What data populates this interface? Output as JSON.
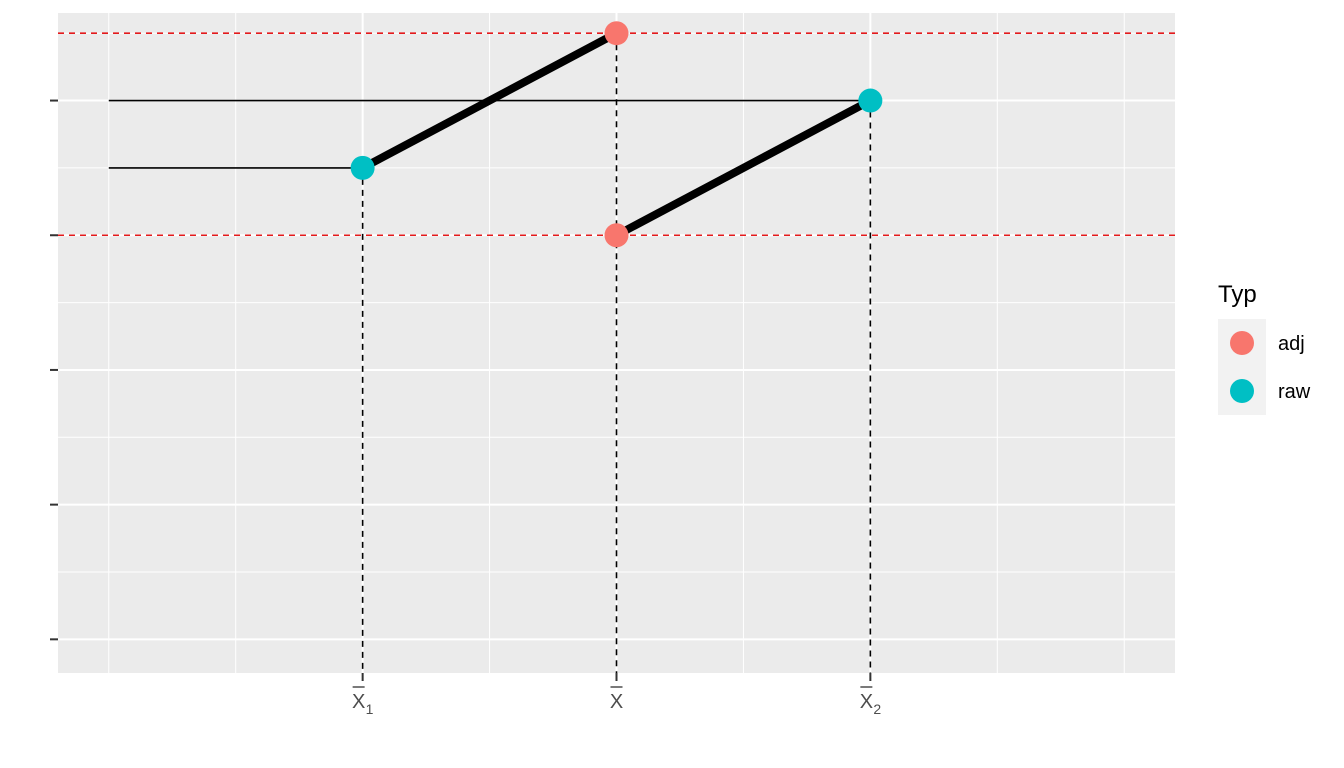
{
  "chart_data": {
    "type": "scatter",
    "x_ticks": [
      {
        "value": 3,
        "label": "X",
        "sub": "1"
      },
      {
        "value": 5,
        "label": "X",
        "sub": ""
      },
      {
        "value": 7,
        "label": "X",
        "sub": "2"
      }
    ],
    "xlim": [
      0.6,
      9.4
    ],
    "ylim": [
      0.25,
      5.15
    ],
    "y_ticks": [
      0.5,
      1.5,
      2.5,
      3.5,
      4.5
    ],
    "x_minor": [
      1,
      2,
      3,
      4,
      5,
      6,
      7,
      8,
      9
    ],
    "y_grid": [
      0.5,
      1.0,
      1.5,
      2.0,
      2.5,
      3.0,
      3.5,
      4.0,
      4.5,
      5.0
    ],
    "points": [
      {
        "x": 3,
        "y": 4.0,
        "type": "raw"
      },
      {
        "x": 7,
        "y": 4.5,
        "type": "raw"
      },
      {
        "x": 5,
        "y": 5.0,
        "type": "adj"
      },
      {
        "x": 5,
        "y": 3.5,
        "type": "adj"
      }
    ],
    "thick_segments": [
      {
        "x1": 3,
        "y1": 4.0,
        "x2": 5,
        "y2": 5.0
      },
      {
        "x1": 5,
        "y1": 3.5,
        "x2": 7,
        "y2": 4.5
      }
    ],
    "thin_segments": [
      {
        "x1": 1,
        "y1": 4.5,
        "x2": 7,
        "y2": 4.5
      },
      {
        "x1": 1,
        "y1": 4.0,
        "x2": 3,
        "y2": 4.0
      }
    ],
    "hlines_dashed": [
      5.0,
      3.5
    ],
    "vlines_dashed": [
      {
        "x": 3,
        "y_top": 4.0
      },
      {
        "x": 5,
        "y_top": 5.0
      },
      {
        "x": 7,
        "y_top": 4.5
      }
    ],
    "grid": true,
    "legend_position": "right",
    "legend": {
      "title": "Typ",
      "entries": [
        {
          "label": "adj",
          "color": "#F8766D"
        },
        {
          "label": "raw",
          "color": "#00BFC4"
        }
      ]
    },
    "colors": {
      "adj": "#F8766D",
      "raw": "#00BFC4",
      "panel": "#EBEBEB",
      "grid": "#FFFFFF",
      "hline": "#E41A1C"
    }
  }
}
